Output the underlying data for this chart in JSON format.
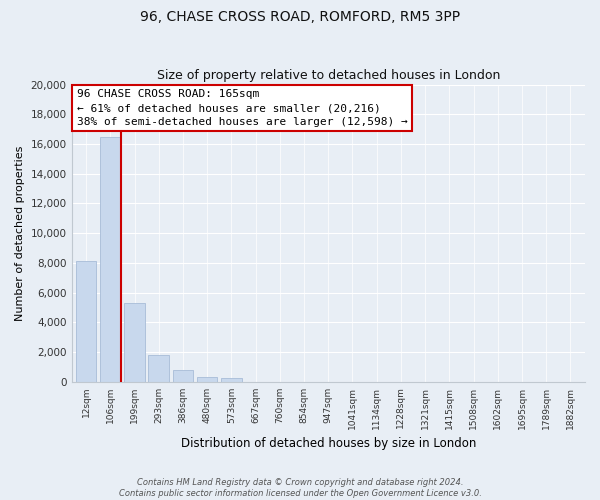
{
  "title": "96, CHASE CROSS ROAD, ROMFORD, RM5 3PP",
  "subtitle": "Size of property relative to detached houses in London",
  "xlabel": "Distribution of detached houses by size in London",
  "ylabel": "Number of detached properties",
  "bar_labels": [
    "12sqm",
    "106sqm",
    "199sqm",
    "293sqm",
    "386sqm",
    "480sqm",
    "573sqm",
    "667sqm",
    "760sqm",
    "854sqm",
    "947sqm",
    "1041sqm",
    "1134sqm",
    "1228sqm",
    "1321sqm",
    "1415sqm",
    "1508sqm",
    "1602sqm",
    "1695sqm",
    "1789sqm",
    "1882sqm"
  ],
  "bar_values": [
    8100,
    16500,
    5300,
    1800,
    800,
    300,
    250,
    0,
    0,
    0,
    0,
    0,
    0,
    0,
    0,
    0,
    0,
    0,
    0,
    0,
    0
  ],
  "bar_color": "#c8d8ed",
  "bar_edge_color": "#a8bcd8",
  "ylim": [
    0,
    20000
  ],
  "yticks": [
    0,
    2000,
    4000,
    6000,
    8000,
    10000,
    12000,
    14000,
    16000,
    18000,
    20000
  ],
  "property_line_color": "#cc0000",
  "annotation_title": "96 CHASE CROSS ROAD: 165sqm",
  "annotation_line1": "← 61% of detached houses are smaller (20,216)",
  "annotation_line2": "38% of semi-detached houses are larger (12,598) →",
  "annotation_box_color": "#ffffff",
  "annotation_box_edge": "#cc0000",
  "footer1": "Contains HM Land Registry data © Crown copyright and database right 2024.",
  "footer2": "Contains public sector information licensed under the Open Government Licence v3.0.",
  "background_color": "#e8eef5",
  "plot_bg_color": "#e8eef5",
  "grid_color": "#ffffff",
  "spine_color": "#c0c8d0"
}
